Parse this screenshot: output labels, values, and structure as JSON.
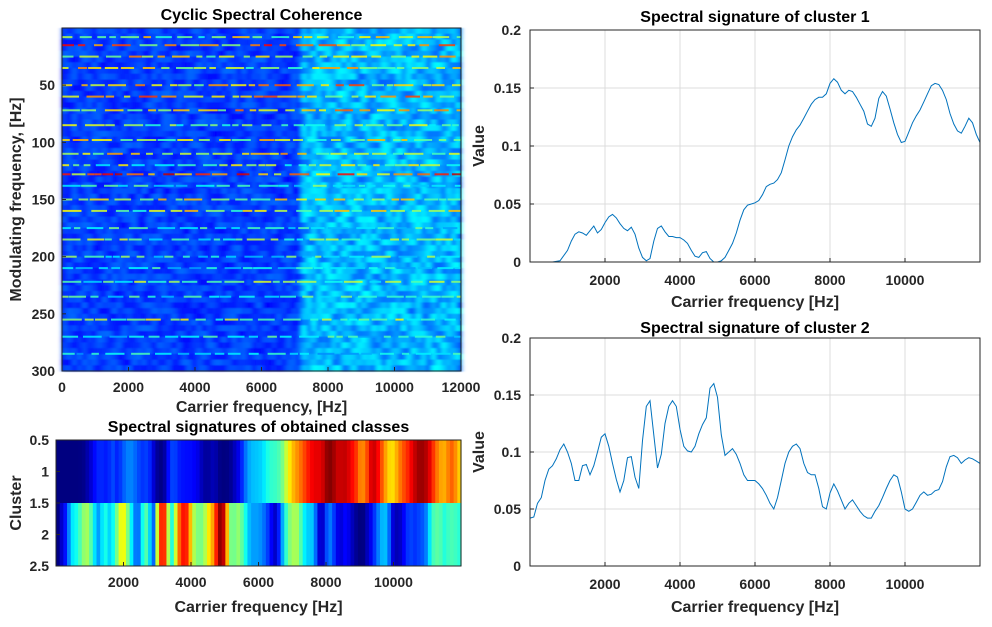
{
  "chart_data": [
    {
      "type": "heatmap",
      "title": "Cyclic Spectral Coherence",
      "xlabel": "Carrier frequency, [Hz]",
      "ylabel": "Modulating frequency, [Hz]",
      "xlim": [
        0,
        12000
      ],
      "ylim": [
        0,
        300
      ],
      "y_reversed": true,
      "xticks": [
        0,
        2000,
        4000,
        6000,
        8000,
        10000,
        12000
      ],
      "yticks": [
        50,
        100,
        150,
        200,
        250,
        300
      ],
      "colormap": "jet",
      "rows": [
        {
          "y": 8,
          "level": 0.7
        },
        {
          "y": 15,
          "level": 0.9
        },
        {
          "y": 25,
          "level": 0.8
        },
        {
          "y": 35,
          "level": 0.75
        },
        {
          "y": 50,
          "level": 0.85
        },
        {
          "y": 60,
          "level": 0.85
        },
        {
          "y": 72,
          "level": 0.8
        },
        {
          "y": 85,
          "level": 0.65
        },
        {
          "y": 98,
          "level": 0.7
        },
        {
          "y": 110,
          "level": 0.75
        },
        {
          "y": 120,
          "level": 0.65
        },
        {
          "y": 128,
          "level": 0.95
        },
        {
          "y": 138,
          "level": 0.55
        },
        {
          "y": 150,
          "level": 0.7
        },
        {
          "y": 160,
          "level": 0.7
        },
        {
          "y": 175,
          "level": 0.5
        },
        {
          "y": 185,
          "level": 0.6
        },
        {
          "y": 200,
          "level": 0.55
        },
        {
          "y": 210,
          "level": 0.5
        },
        {
          "y": 222,
          "level": 0.6
        },
        {
          "y": 235,
          "level": 0.55
        },
        {
          "y": 255,
          "level": 0.65
        },
        {
          "y": 270,
          "level": 0.5
        },
        {
          "y": 285,
          "level": 0.45
        }
      ],
      "high_band_start": 7200
    },
    {
      "type": "heatmap",
      "title": "Spectral signatures of obtained classes",
      "xlabel": "Carrier frequency [Hz]",
      "ylabel": "Cluster",
      "xlim": [
        0,
        12000
      ],
      "ylim": [
        0.5,
        2.5
      ],
      "xticks": [
        2000,
        4000,
        6000,
        8000,
        10000
      ],
      "yticks": [
        0.5,
        1,
        1.5,
        2,
        2.5
      ],
      "colormap": "jet",
      "rows": [
        "Cluster 1 signature",
        "Cluster 2 signature"
      ]
    },
    {
      "type": "line",
      "title": "Spectral signature of cluster 1",
      "xlabel": "Carrier frequency [Hz]",
      "ylabel": "Value",
      "xlim": [
        0,
        12000
      ],
      "ylim": [
        0,
        0.2
      ],
      "xticks": [
        2000,
        4000,
        6000,
        8000,
        10000
      ],
      "yticks": [
        0,
        0.05,
        0.1,
        0.15,
        0.2
      ],
      "ytick_labels": [
        "0",
        "0.05",
        "0.1",
        "0.15",
        "0.2"
      ],
      "grid": true,
      "color": "#0072BD",
      "x": [
        0,
        200,
        400,
        600,
        800,
        1000,
        1100,
        1200,
        1300,
        1400,
        1500,
        1600,
        1700,
        1800,
        1900,
        2000,
        2100,
        2200,
        2300,
        2400,
        2500,
        2600,
        2700,
        2800,
        2900,
        3000,
        3100,
        3200,
        3300,
        3400,
        3500,
        3600,
        3700,
        3800,
        3900,
        4000,
        4100,
        4200,
        4300,
        4400,
        4500,
        4600,
        4700,
        4800,
        4900,
        5000,
        5100,
        5200,
        5300,
        5400,
        5500,
        5600,
        5700,
        5800,
        5900,
        6000,
        6100,
        6200,
        6300,
        6400,
        6500,
        6600,
        6700,
        6800,
        6900,
        7000,
        7100,
        7200,
        7300,
        7400,
        7500,
        7600,
        7700,
        7800,
        7900,
        8000,
        8100,
        8200,
        8300,
        8400,
        8500,
        8600,
        8700,
        8800,
        8900,
        9000,
        9100,
        9200,
        9300,
        9400,
        9500,
        9600,
        9700,
        9800,
        9900,
        10000,
        10100,
        10200,
        10300,
        10400,
        10500,
        10600,
        10700,
        10800,
        10900,
        11000,
        11100,
        11200,
        11300,
        11400,
        11500,
        11600,
        11700,
        11800,
        11900,
        12000
      ],
      "y": [
        0,
        0,
        0,
        0,
        0.001,
        0.01,
        0.018,
        0.024,
        0.026,
        0.025,
        0.023,
        0.027,
        0.031,
        0.025,
        0.028,
        0.034,
        0.039,
        0.041,
        0.038,
        0.033,
        0.029,
        0.027,
        0.03,
        0.024,
        0.012,
        0.004,
        0.001,
        0.003,
        0.018,
        0.029,
        0.031,
        0.026,
        0.022,
        0.022,
        0.021,
        0.021,
        0.019,
        0.016,
        0.01,
        0.005,
        0.004,
        0.008,
        0.009,
        0.003,
        0,
        0,
        0.001,
        0.004,
        0.01,
        0.016,
        0.025,
        0.036,
        0.045,
        0.049,
        0.05,
        0.051,
        0.053,
        0.058,
        0.065,
        0.067,
        0.068,
        0.071,
        0.077,
        0.088,
        0.1,
        0.108,
        0.114,
        0.118,
        0.124,
        0.13,
        0.136,
        0.14,
        0.142,
        0.142,
        0.145,
        0.154,
        0.158,
        0.155,
        0.148,
        0.145,
        0.148,
        0.147,
        0.142,
        0.136,
        0.13,
        0.119,
        0.117,
        0.124,
        0.141,
        0.147,
        0.143,
        0.132,
        0.12,
        0.11,
        0.103,
        0.104,
        0.112,
        0.12,
        0.126,
        0.131,
        0.138,
        0.145,
        0.152,
        0.154,
        0.153,
        0.148,
        0.14,
        0.128,
        0.119,
        0.113,
        0.111,
        0.117,
        0.124,
        0.12,
        0.11,
        0.103
      ]
    },
    {
      "type": "line",
      "title": "Spectral signature of cluster 2",
      "xlabel": "Carrier frequency [Hz]",
      "ylabel": "Value",
      "xlim": [
        0,
        12000
      ],
      "ylim": [
        0,
        0.2
      ],
      "xticks": [
        2000,
        4000,
        6000,
        8000,
        10000
      ],
      "yticks": [
        0,
        0.05,
        0.1,
        0.15,
        0.2
      ],
      "ytick_labels": [
        "0",
        "0.05",
        "0.1",
        "0.15",
        "0.2"
      ],
      "grid": true,
      "color": "#0072BD",
      "x": [
        0,
        100,
        200,
        300,
        400,
        500,
        600,
        700,
        800,
        900,
        1000,
        1100,
        1200,
        1300,
        1400,
        1500,
        1600,
        1700,
        1800,
        1900,
        2000,
        2100,
        2200,
        2300,
        2400,
        2500,
        2600,
        2700,
        2800,
        2900,
        3000,
        3100,
        3200,
        3300,
        3400,
        3500,
        3600,
        3700,
        3800,
        3900,
        4000,
        4100,
        4200,
        4300,
        4400,
        4500,
        4600,
        4700,
        4800,
        4900,
        5000,
        5100,
        5200,
        5300,
        5400,
        5500,
        5600,
        5700,
        5800,
        5900,
        6000,
        6100,
        6200,
        6300,
        6400,
        6500,
        6600,
        6700,
        6800,
        6900,
        7000,
        7100,
        7200,
        7300,
        7400,
        7500,
        7600,
        7700,
        7800,
        7900,
        8000,
        8100,
        8200,
        8300,
        8400,
        8500,
        8600,
        8700,
        8800,
        8900,
        9000,
        9100,
        9200,
        9300,
        9400,
        9500,
        9600,
        9700,
        9800,
        9900,
        10000,
        10100,
        10200,
        10300,
        10400,
        10500,
        10600,
        10700,
        10800,
        10900,
        11000,
        11100,
        11200,
        11300,
        11400,
        11500,
        11600,
        11700,
        11800,
        11900,
        12000
      ],
      "y": [
        0.042,
        0.043,
        0.055,
        0.06,
        0.075,
        0.085,
        0.088,
        0.094,
        0.102,
        0.107,
        0.1,
        0.09,
        0.075,
        0.075,
        0.088,
        0.089,
        0.08,
        0.088,
        0.1,
        0.113,
        0.116,
        0.105,
        0.09,
        0.076,
        0.065,
        0.075,
        0.095,
        0.096,
        0.078,
        0.068,
        0.11,
        0.14,
        0.145,
        0.115,
        0.086,
        0.098,
        0.125,
        0.14,
        0.145,
        0.14,
        0.12,
        0.105,
        0.101,
        0.1,
        0.105,
        0.116,
        0.124,
        0.13,
        0.156,
        0.16,
        0.148,
        0.115,
        0.097,
        0.1,
        0.103,
        0.098,
        0.09,
        0.08,
        0.075,
        0.075,
        0.075,
        0.072,
        0.068,
        0.062,
        0.055,
        0.05,
        0.06,
        0.075,
        0.09,
        0.1,
        0.105,
        0.107,
        0.103,
        0.09,
        0.082,
        0.08,
        0.08,
        0.068,
        0.052,
        0.05,
        0.064,
        0.072,
        0.066,
        0.058,
        0.05,
        0.055,
        0.058,
        0.053,
        0.048,
        0.044,
        0.042,
        0.042,
        0.048,
        0.053,
        0.06,
        0.068,
        0.075,
        0.08,
        0.078,
        0.065,
        0.05,
        0.048,
        0.05,
        0.056,
        0.062,
        0.065,
        0.062,
        0.063,
        0.066,
        0.067,
        0.074,
        0.087,
        0.096,
        0.097,
        0.095,
        0.09,
        0.093,
        0.095,
        0.094,
        0.092,
        0.09
      ]
    }
  ]
}
